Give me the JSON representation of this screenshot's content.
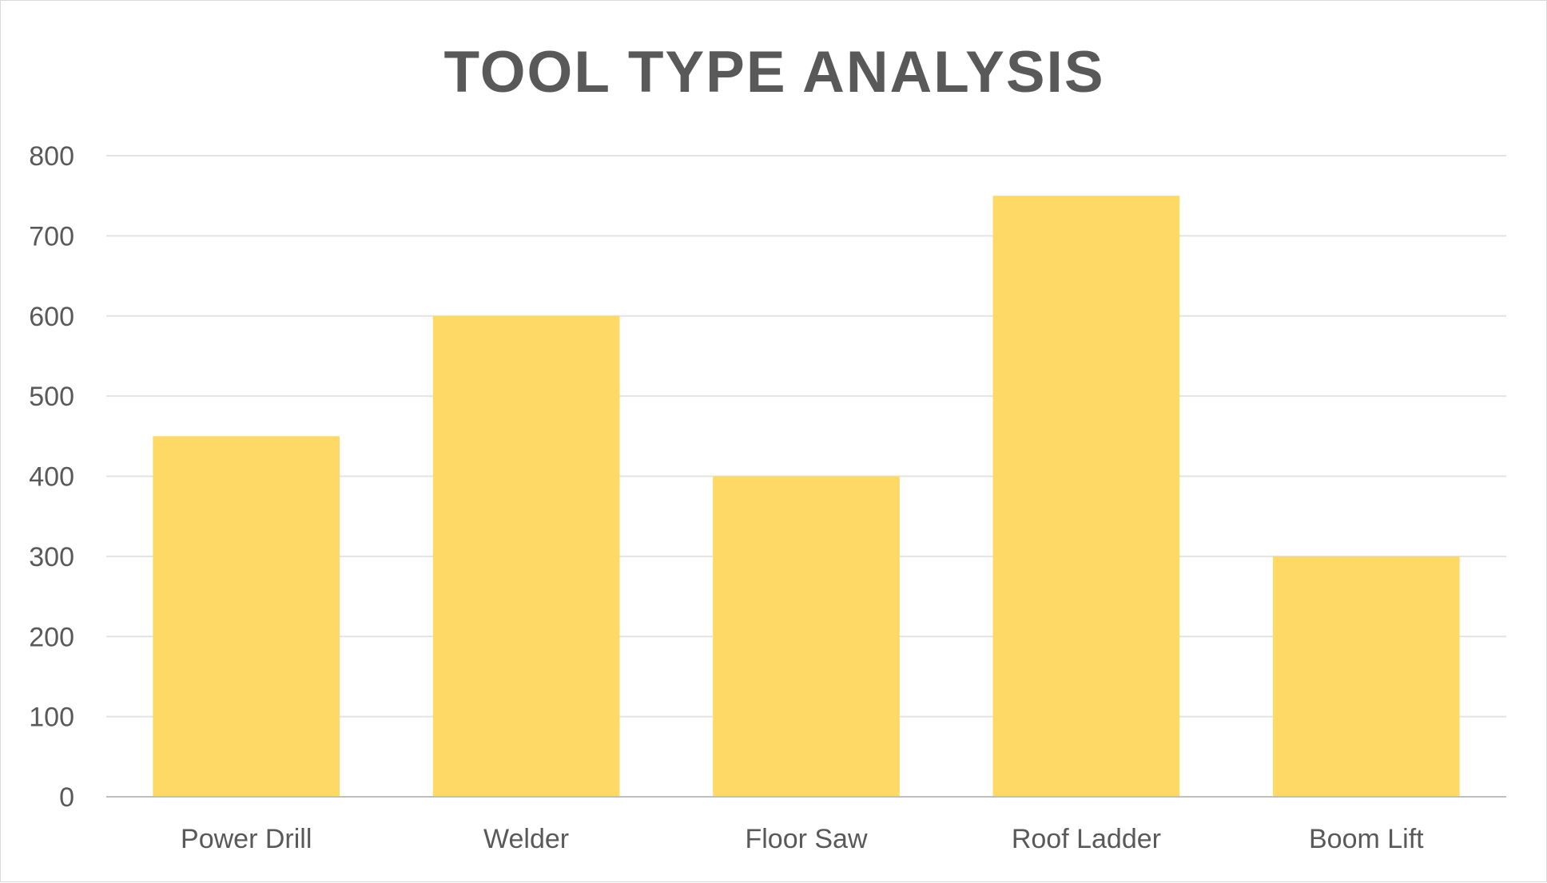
{
  "chart_data": {
    "type": "bar",
    "title": "TOOL TYPE ANALYSIS",
    "categories": [
      "Power Drill",
      "Welder",
      "Floor Saw",
      "Roof Ladder",
      "Boom Lift"
    ],
    "values": [
      450,
      600,
      400,
      750,
      300
    ],
    "xlabel": "",
    "ylabel": "",
    "ylim": [
      0,
      800
    ],
    "yticks": [
      0,
      100,
      200,
      300,
      400,
      500,
      600,
      700,
      800
    ],
    "grid": true,
    "legend": "none",
    "bar_color": "#FFD966"
  }
}
